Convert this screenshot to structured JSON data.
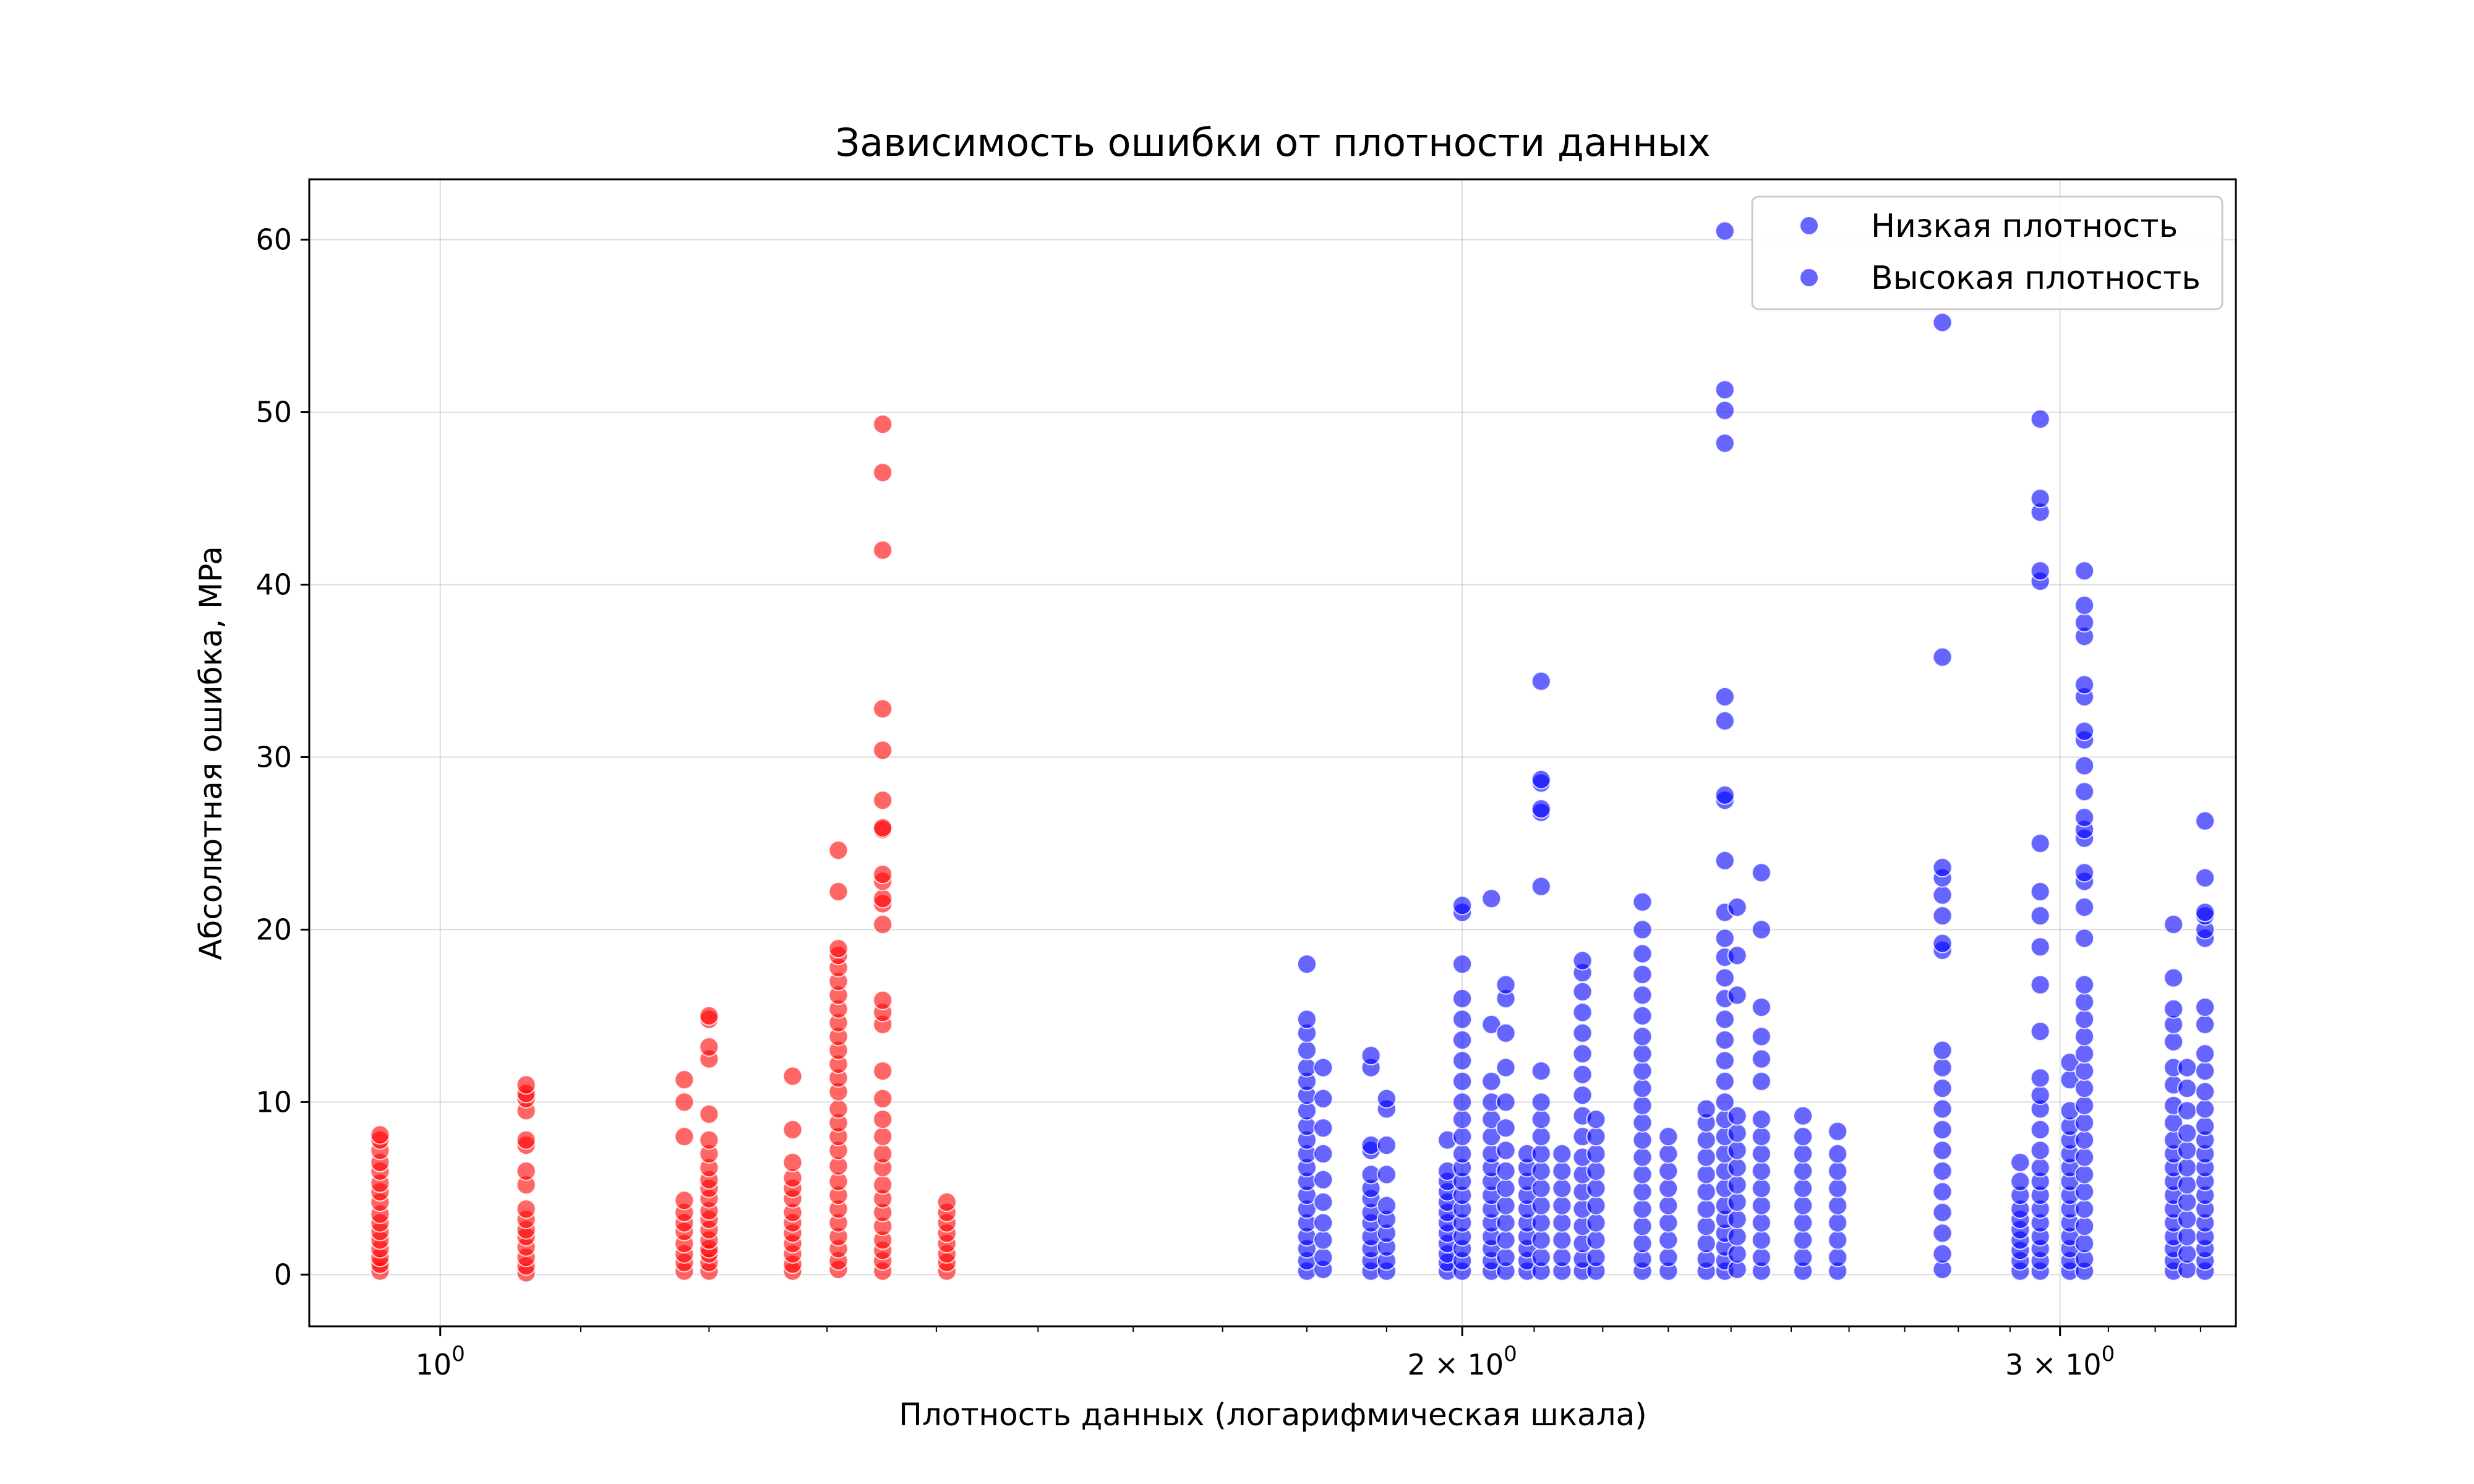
{
  "chart_data": {
    "type": "scatter",
    "title": "Зависимость ошибки от плотности данных",
    "xlabel": "Плотность данных (логарифмическая шкала)",
    "ylabel": "Абсолютная ошибка, MPa",
    "xscale": "log",
    "xlim": [
      0.915,
      3.38
    ],
    "ylim": [
      -3,
      63.5
    ],
    "x_ticks": [
      {
        "value": 1,
        "base": "10",
        "exp": "0"
      },
      {
        "value": 2,
        "base": "2 × 10",
        "exp": "0"
      },
      {
        "value": 3,
        "base": "3 × 10",
        "exp": "0"
      }
    ],
    "y_ticks": [
      0,
      10,
      20,
      30,
      40,
      50,
      60
    ],
    "grid": true,
    "legend_position": "top-right",
    "legend": [
      {
        "label": "Низкая плотность",
        "color": "#0000ff"
      },
      {
        "label": "Высокая плотность",
        "color": "#0000ff"
      }
    ],
    "series": [
      {
        "color": "#ff0000",
        "groups": [
          {
            "x": 0.96,
            "y": [
              0.2,
              0.6,
              1.0,
              1.5,
              2.0,
              2.5,
              3.0,
              3.5,
              4.2,
              4.8,
              5.3,
              6.0,
              6.5,
              7.2,
              7.8,
              8.1
            ]
          },
          {
            "x": 1.06,
            "y": [
              0.1,
              0.5,
              1.0,
              1.6,
              2.2,
              2.6,
              3.2,
              3.8,
              5.2,
              6.0,
              7.5,
              7.8,
              9.5,
              10.2,
              10.5,
              11.0
            ]
          },
          {
            "x": 1.18,
            "y": [
              0.2,
              0.7,
              1.2,
              1.8,
              2.5,
              3.0,
              3.6,
              4.3,
              8.0,
              10.0,
              11.3
            ]
          },
          {
            "x": 1.2,
            "y": [
              0.2,
              0.7,
              1.2,
              1.5,
              2.0,
              2.6,
              3.2,
              3.7,
              4.4,
              5.0,
              5.5,
              6.2,
              7.0,
              7.8,
              9.3,
              12.5,
              13.2,
              14.8,
              15.0
            ]
          },
          {
            "x": 1.27,
            "y": [
              0.2,
              0.6,
              1.2,
              1.8,
              2.4,
              3.0,
              3.6,
              4.4,
              5.0,
              5.6,
              6.5,
              8.4,
              11.5
            ]
          },
          {
            "x": 1.31,
            "y": [
              0.3,
              0.8,
              1.5,
              2.2,
              3.0,
              3.8,
              4.6,
              5.4,
              6.3,
              7.2,
              8.0,
              8.8,
              9.6,
              10.6,
              11.4,
              12.2,
              13.0,
              13.8,
              14.6,
              15.4,
              16.2,
              17.0,
              17.8,
              18.5,
              18.9,
              22.2,
              24.6
            ]
          },
          {
            "x": 1.35,
            "y": [
              0.2,
              0.8,
              1.4,
              2.0,
              2.8,
              3.6,
              4.4,
              5.2,
              6.2,
              7.0,
              8.0,
              9.0,
              10.2,
              11.8,
              14.5,
              15.2,
              15.9,
              20.3,
              21.5,
              21.8,
              22.8,
              23.2,
              25.8,
              25.9,
              27.5,
              30.4,
              32.8,
              42.0,
              46.5,
              49.3
            ]
          },
          {
            "x": 1.41,
            "y": [
              0.2,
              0.7,
              1.2,
              1.8,
              2.4,
              3.0,
              3.6,
              4.2
            ]
          }
        ]
      },
      {
        "color": "#0000ff",
        "groups": [
          {
            "x": 1.8,
            "y": [
              0.2,
              0.8,
              1.5,
              2.2,
              3.0,
              3.8,
              4.6,
              5.4,
              6.2,
              7.0,
              7.8,
              8.6,
              9.5,
              10.4,
              11.2,
              12.0,
              13.0,
              14.0,
              14.8,
              18.0
            ]
          },
          {
            "x": 1.82,
            "y": [
              0.3,
              1.0,
              2.0,
              3.0,
              4.2,
              5.5,
              7.0,
              8.5,
              10.2,
              12.0
            ]
          },
          {
            "x": 1.88,
            "y": [
              0.2,
              0.8,
              1.5,
              2.2,
              3.0,
              3.6,
              4.4,
              5.0,
              5.8,
              7.2,
              7.5,
              12.0,
              12.7
            ]
          },
          {
            "x": 1.9,
            "y": [
              0.2,
              0.8,
              1.6,
              2.4,
              3.2,
              4.0,
              5.8,
              7.5,
              9.6,
              10.2
            ]
          },
          {
            "x": 1.98,
            "y": [
              0.2,
              0.7,
              1.2,
              1.8,
              2.4,
              3.0,
              3.6,
              4.2,
              4.8,
              5.4,
              6.0,
              7.8
            ]
          },
          {
            "x": 2.0,
            "y": [
              0.2,
              0.8,
              1.5,
              2.2,
              3.0,
              3.8,
              4.6,
              5.4,
              6.2,
              7.0,
              8.0,
              9.0,
              10.0,
              11.2,
              12.4,
              13.6,
              14.8,
              16.0,
              18.0,
              21.0,
              21.4
            ]
          },
          {
            "x": 2.04,
            "y": [
              0.2,
              0.8,
              1.5,
              2.2,
              3.0,
              3.8,
              4.6,
              5.4,
              6.2,
              7.0,
              8.0,
              9.0,
              10.0,
              11.2,
              14.5,
              21.8
            ]
          },
          {
            "x": 2.06,
            "y": [
              0.2,
              1.0,
              2.0,
              3.0,
              4.0,
              5.0,
              6.0,
              7.2,
              8.5,
              10.0,
              12.0,
              14.0,
              16.0,
              16.8
            ]
          },
          {
            "x": 2.09,
            "y": [
              0.2,
              0.8,
              1.5,
              2.2,
              3.0,
              3.8,
              4.6,
              5.4,
              6.2,
              7.0
            ]
          },
          {
            "x": 2.11,
            "y": [
              0.2,
              1.0,
              2.0,
              3.0,
              4.0,
              5.0,
              6.0,
              7.0,
              8.0,
              9.0,
              10.0,
              11.8,
              22.5,
              26.8,
              27.0,
              28.5,
              28.7,
              34.4
            ]
          },
          {
            "x": 2.14,
            "y": [
              0.2,
              1.0,
              2.0,
              3.0,
              4.0,
              5.0,
              6.0,
              7.0
            ]
          },
          {
            "x": 2.17,
            "y": [
              0.2,
              0.9,
              1.8,
              2.8,
              3.8,
              4.8,
              5.8,
              6.8,
              8.0,
              9.2,
              10.4,
              11.6,
              12.8,
              14.0,
              15.2,
              16.4,
              17.5,
              18.2
            ]
          },
          {
            "x": 2.19,
            "y": [
              0.2,
              1.0,
              2.0,
              3.0,
              4.0,
              5.0,
              6.0,
              7.0,
              8.0,
              9.0
            ]
          },
          {
            "x": 2.26,
            "y": [
              0.2,
              0.9,
              1.8,
              2.8,
              3.8,
              4.8,
              5.8,
              6.8,
              7.8,
              8.8,
              9.8,
              10.8,
              11.8,
              12.8,
              13.8,
              15.0,
              16.2,
              17.4,
              18.6,
              20.0,
              21.6
            ]
          },
          {
            "x": 2.3,
            "y": [
              0.2,
              1.0,
              2.0,
              3.0,
              4.0,
              5.0,
              6.0,
              7.0,
              8.0
            ]
          },
          {
            "x": 2.36,
            "y": [
              0.2,
              0.9,
              1.8,
              2.8,
              3.8,
              4.8,
              5.8,
              6.8,
              7.8,
              8.8,
              9.6
            ]
          },
          {
            "x": 2.39,
            "y": [
              0.2,
              0.8,
              1.6,
              2.4,
              3.2,
              4.0,
              5.0,
              6.0,
              7.0,
              8.0,
              9.0,
              10.0,
              11.2,
              12.4,
              13.6,
              14.8,
              16.0,
              17.2,
              18.4,
              19.5,
              21.0,
              24.0,
              27.5,
              27.8,
              32.1,
              33.5,
              48.2,
              50.1,
              51.3,
              60.5
            ]
          },
          {
            "x": 2.41,
            "y": [
              0.3,
              1.2,
              2.2,
              3.2,
              4.2,
              5.2,
              6.2,
              7.2,
              8.2,
              9.2,
              16.2,
              18.5,
              21.3
            ]
          },
          {
            "x": 2.45,
            "y": [
              0.2,
              1.0,
              2.0,
              3.0,
              4.0,
              5.0,
              6.0,
              7.0,
              8.0,
              9.0,
              11.2,
              12.5,
              13.8,
              15.5,
              20.0,
              23.3
            ]
          },
          {
            "x": 2.52,
            "y": [
              0.2,
              1.0,
              2.0,
              3.0,
              4.0,
              5.0,
              6.0,
              7.0,
              8.0,
              9.2
            ]
          },
          {
            "x": 2.58,
            "y": [
              0.2,
              1.0,
              2.0,
              3.0,
              4.0,
              5.0,
              6.0,
              7.0,
              8.3
            ]
          },
          {
            "x": 2.77,
            "y": [
              0.3,
              1.2,
              2.4,
              3.6,
              4.8,
              6.0,
              7.2,
              8.4,
              9.6,
              10.8,
              12.0,
              13.0,
              18.8,
              19.2,
              20.8,
              22.0,
              23.0,
              23.6,
              35.8,
              55.2
            ]
          },
          {
            "x": 2.92,
            "y": [
              0.2,
              0.8,
              1.4,
              2.0,
              2.6,
              3.2,
              3.8,
              4.6,
              5.4,
              6.5
            ]
          },
          {
            "x": 2.96,
            "y": [
              0.2,
              0.8,
              1.5,
              2.2,
              3.0,
              3.8,
              4.6,
              5.4,
              6.2,
              7.2,
              8.4,
              9.6,
              10.4,
              11.4,
              14.1,
              16.8,
              19.0,
              20.8,
              22.2,
              25.0,
              40.2,
              40.8,
              44.2,
              45.0,
              49.6
            ]
          },
          {
            "x": 3.02,
            "y": [
              0.2,
              0.8,
              1.5,
              2.2,
              3.0,
              3.8,
              4.6,
              5.4,
              6.2,
              7.0,
              7.8,
              8.6,
              9.5,
              11.3,
              12.3
            ]
          },
          {
            "x": 3.05,
            "y": [
              0.2,
              0.9,
              1.8,
              2.8,
              3.8,
              4.8,
              5.8,
              6.8,
              7.8,
              8.8,
              9.8,
              10.8,
              11.8,
              12.8,
              13.8,
              14.8,
              15.8,
              16.8,
              19.5,
              21.3,
              22.8,
              23.3,
              25.3,
              25.8,
              26.5,
              28.0,
              29.5,
              31.0,
              31.5,
              33.5,
              34.2,
              37.0,
              37.8,
              38.8,
              40.8
            ]
          },
          {
            "x": 3.24,
            "y": [
              0.2,
              0.8,
              1.5,
              2.2,
              3.0,
              3.8,
              4.6,
              5.4,
              6.2,
              7.0,
              7.8,
              8.8,
              9.8,
              11.0,
              12.0,
              13.5,
              14.5,
              15.4,
              17.2,
              20.3
            ]
          },
          {
            "x": 3.27,
            "y": [
              0.3,
              1.2,
              2.2,
              3.2,
              4.2,
              5.2,
              6.2,
              7.2,
              8.2,
              9.5,
              10.8,
              12.0
            ]
          },
          {
            "x": 3.31,
            "y": [
              0.2,
              0.8,
              1.5,
              2.2,
              3.0,
              3.8,
              4.6,
              5.4,
              6.2,
              7.0,
              7.8,
              8.6,
              9.6,
              10.6,
              11.8,
              12.8,
              14.5,
              15.5,
              19.5,
              20.0,
              20.8,
              21.0,
              23.0,
              26.3
            ]
          }
        ]
      }
    ]
  }
}
